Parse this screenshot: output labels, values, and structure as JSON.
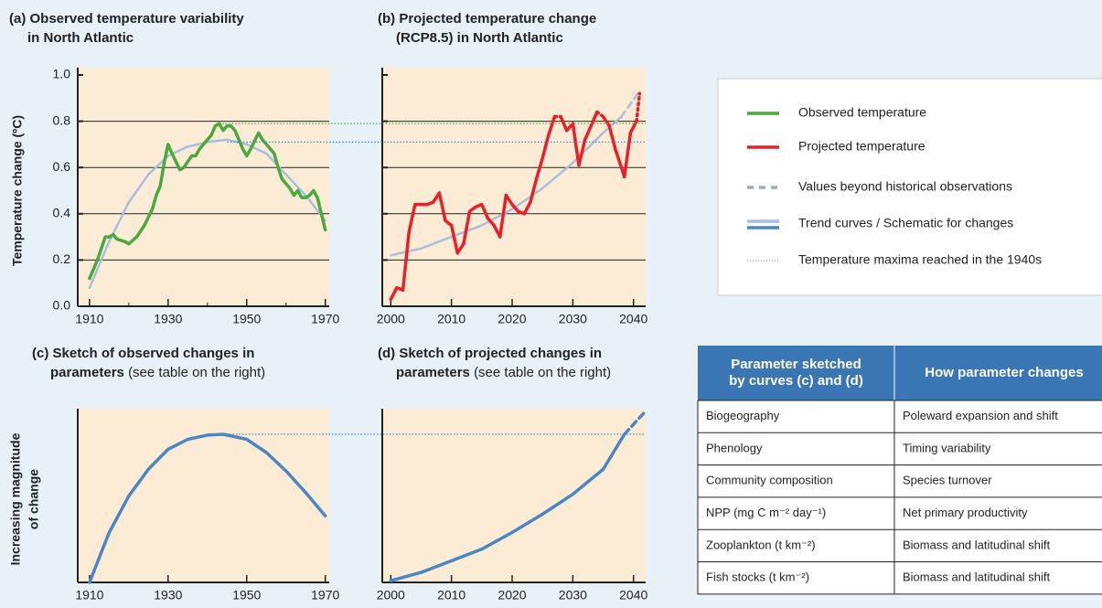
{
  "chart_data": [
    {
      "type": "line",
      "title_lines": [
        "(a) Observed temperature variability",
        "in North Atlantic"
      ],
      "ylabel": "Temperature change (ºC)",
      "xlim": [
        1907,
        1971
      ],
      "xticks": [
        1910,
        1930,
        1950,
        1970
      ],
      "xminor": [
        1920,
        1940,
        1960
      ],
      "ylim": [
        0,
        1
      ],
      "yticks": [
        {
          "value": 0,
          "label": "0.0"
        },
        0.2,
        0.4,
        0.6,
        0.8,
        {
          "value": 1,
          "label": "1.0"
        }
      ],
      "show_ytick_labels": true,
      "grid": true,
      "series": [
        {
          "color": "#a9bde0",
          "width": 2.5,
          "x": [
            1910,
            1915,
            1920,
            1925,
            1930,
            1935,
            1940,
            1945,
            1950,
            1955,
            1960,
            1965,
            1970
          ],
          "values": [
            0.08,
            0.28,
            0.45,
            0.57,
            0.65,
            0.69,
            0.71,
            0.72,
            0.7,
            0.66,
            0.57,
            0.48,
            0.37
          ]
        },
        {
          "color": "#4aa83f",
          "width": 3.5,
          "x": [
            1910,
            1912,
            1914,
            1915,
            1916,
            1917,
            1919,
            1920,
            1922,
            1924,
            1926,
            1927,
            1928,
            1929,
            1930,
            1931,
            1933,
            1934,
            1936,
            1937,
            1938,
            1940,
            1941,
            1942,
            1943,
            1944,
            1945,
            1946,
            1947,
            1948,
            1949,
            1950,
            1951,
            1953,
            1954,
            1955,
            1957,
            1958,
            1959,
            1960,
            1961,
            1962,
            1963,
            1964,
            1965,
            1966,
            1967,
            1968,
            1969,
            1970
          ],
          "values": [
            0.12,
            0.2,
            0.3,
            0.3,
            0.31,
            0.29,
            0.28,
            0.27,
            0.3,
            0.35,
            0.42,
            0.48,
            0.52,
            0.62,
            0.7,
            0.66,
            0.59,
            0.6,
            0.65,
            0.65,
            0.68,
            0.72,
            0.74,
            0.78,
            0.79,
            0.76,
            0.78,
            0.78,
            0.76,
            0.72,
            0.68,
            0.65,
            0.68,
            0.75,
            0.72,
            0.7,
            0.66,
            0.6,
            0.55,
            0.53,
            0.51,
            0.48,
            0.5,
            0.47,
            0.47,
            0.48,
            0.5,
            0.47,
            0.4,
            0.33
          ]
        }
      ],
      "reference_lines": [
        {
          "value": 0.79,
          "x": 1943,
          "color": "#4aa83f"
        },
        {
          "value": 0.71,
          "x": 1945,
          "color": "#4a86c5"
        }
      ]
    },
    {
      "type": "line",
      "title_lines": [
        "(b) Projected temperature change",
        "(RCP8.5) in North Atlantic"
      ],
      "xlim": [
        1998.6,
        2042
      ],
      "xticks": [
        2000,
        2010,
        2020,
        2030,
        2040
      ],
      "xminor": [],
      "ylim": [
        0,
        1
      ],
      "yticks": [
        0,
        0.2,
        0.4,
        0.6,
        0.8,
        1
      ],
      "show_ytick_labels": false,
      "grid": true,
      "series": [
        {
          "color": "#a9bde0",
          "width": 2.5,
          "beyond_style": "dashed",
          "x": [
            2000,
            2005,
            2010,
            2015,
            2020,
            2025,
            2030,
            2035,
            2038,
            2041
          ],
          "values": [
            0.22,
            0.25,
            0.3,
            0.35,
            0.42,
            0.51,
            0.62,
            0.75,
            0.82,
            0.93
          ]
        },
        {
          "color": "#e8202a",
          "width": 3.5,
          "beyond_style": "dotted",
          "x": [
            2000,
            2001,
            2002,
            2003,
            2004,
            2005,
            2006,
            2007,
            2008,
            2009,
            2010,
            2011,
            2012,
            2013,
            2014,
            2015,
            2016,
            2017,
            2018,
            2019,
            2020,
            2021,
            2022,
            2023,
            2024,
            2025,
            2026,
            2027,
            2028,
            2029,
            2030,
            2031,
            2032,
            2033,
            2034,
            2035,
            2036,
            2037,
            2038.5,
            2039.5,
            2040.5,
            2041
          ],
          "values": [
            0.03,
            0.08,
            0.07,
            0.32,
            0.44,
            0.44,
            0.44,
            0.45,
            0.49,
            0.37,
            0.35,
            0.23,
            0.27,
            0.41,
            0.43,
            0.44,
            0.38,
            0.35,
            0.3,
            0.48,
            0.44,
            0.41,
            0.4,
            0.45,
            0.55,
            0.64,
            0.74,
            0.82,
            0.82,
            0.76,
            0.79,
            0.61,
            0.72,
            0.78,
            0.84,
            0.82,
            0.78,
            0.68,
            0.56,
            0.75,
            0.8,
            0.92
          ]
        }
      ]
    },
    {
      "type": "line",
      "title_lines": [
        "(c) Sketch of observed changes in",
        "parameters"
      ],
      "title_note": "(see table on the right)",
      "ylabel_lines": [
        "Increasing magnitude",
        "of change"
      ],
      "xlim": [
        1907,
        1971
      ],
      "xticks": [
        1910,
        1930,
        1950,
        1970
      ],
      "xminor": [],
      "ylim": [
        0,
        1
      ],
      "series": [
        {
          "color": "#4a86c5",
          "width": 3.5,
          "x": [
            1910,
            1915,
            1920,
            1925,
            1930,
            1935,
            1940,
            1944,
            1950,
            1955,
            1960,
            1965,
            1970
          ],
          "values": [
            0,
            0.3,
            0.52,
            0.68,
            0.8,
            0.86,
            0.885,
            0.89,
            0.86,
            0.78,
            0.67,
            0.54,
            0.4
          ]
        }
      ],
      "reference_lines": [
        {
          "value": 0.89,
          "x": 1944,
          "color": "#4a86c5"
        }
      ]
    },
    {
      "type": "line",
      "title_lines": [
        "(d) Sketch of projected changes in",
        "parameters"
      ],
      "title_note": "(see table on the right)",
      "xlim": [
        1998.6,
        2042
      ],
      "xticks": [
        2000,
        2010,
        2020,
        2030,
        2040
      ],
      "xminor": [],
      "ylim": [
        0,
        1
      ],
      "series": [
        {
          "color": "#4a86c5",
          "width": 3.5,
          "beyond_style": "dashed",
          "x": [
            2000,
            2005,
            2010,
            2015,
            2020,
            2025,
            2030,
            2035,
            2038.5,
            2042
          ],
          "values": [
            0.01,
            0.06,
            0.13,
            0.2,
            0.3,
            0.41,
            0.53,
            0.68,
            0.89,
            1.03
          ]
        }
      ]
    }
  ],
  "legend": {
    "items": [
      {
        "label": "Observed temperature",
        "color": "#4aa83f",
        "style": "solid"
      },
      {
        "label": "Projected temperature",
        "color": "#e8202a",
        "style": "solid"
      },
      {
        "label": "Values beyond historical observations",
        "color": "#a0a8b8",
        "style": "dashed"
      },
      {
        "label": "Trend curves / Schematic for changes",
        "color": "#a9bde0",
        "style": "double"
      },
      {
        "label": "Temperature maxima reached in the 1940s",
        "color": "#7a8aa0",
        "style": "dotted"
      }
    ]
  },
  "table": {
    "header": [
      [
        "Parameter sketched",
        "by curves (c) and (d)"
      ],
      [
        "How parameter changes"
      ]
    ],
    "rows": [
      [
        "Biogeography",
        "Poleward expansion and shift"
      ],
      [
        "Phenology",
        "Timing variability"
      ],
      [
        "Community composition",
        "Species turnover"
      ],
      [
        "NPP (mg C m⁻² day⁻¹)",
        "Net primary productivity"
      ],
      [
        "Zooplankton (t km⁻²)",
        "Biomass and latitudinal shift"
      ],
      [
        "Fish stocks  (t km⁻²)",
        "Biomass and latitudinal shift"
      ]
    ]
  }
}
